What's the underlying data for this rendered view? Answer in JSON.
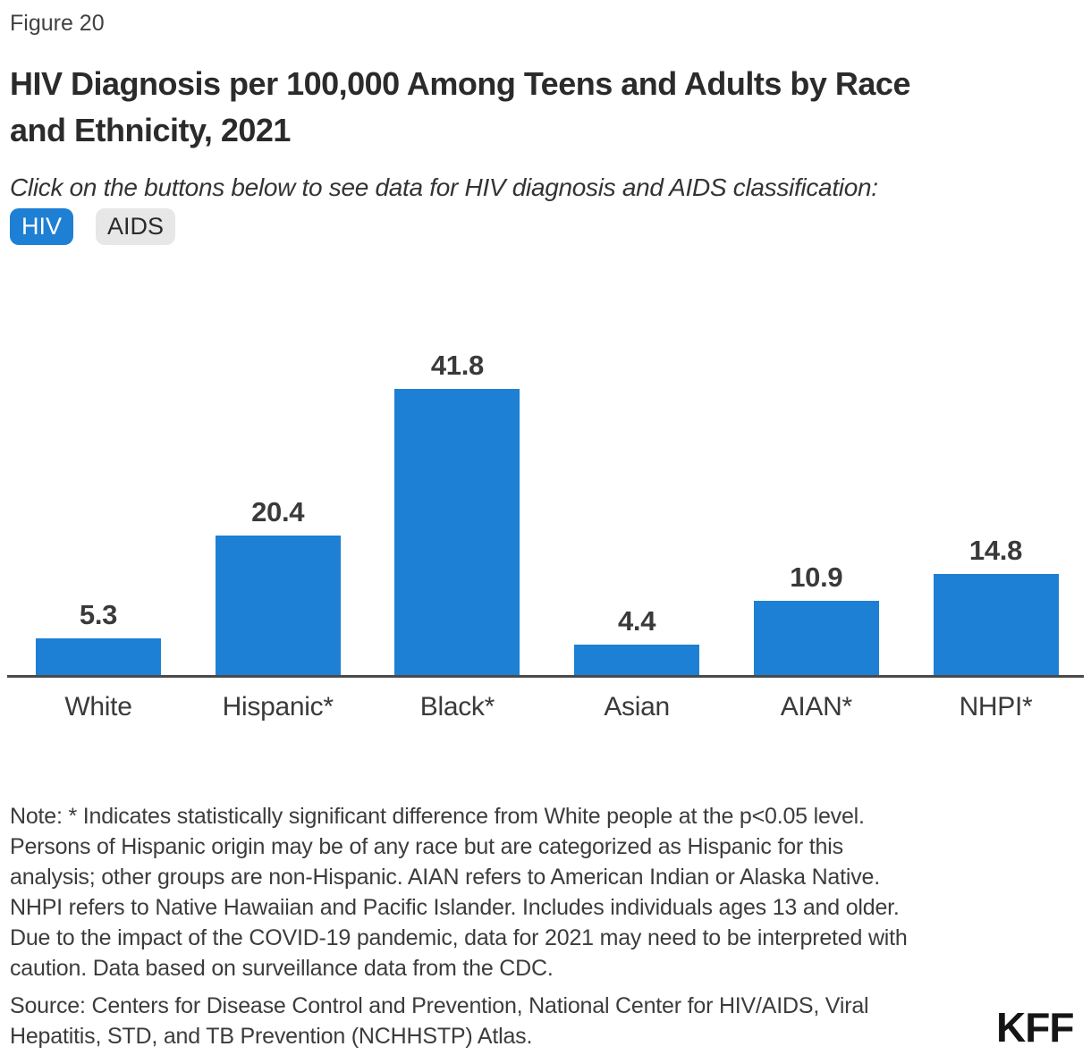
{
  "figure_label": "Figure 20",
  "title": "HIV Diagnosis per 100,000 Among Teens and Adults by Race\nand Ethnicity, 2021",
  "subtitle": "Click on the buttons below to see data for HIV diagnosis and AIDS classification:",
  "buttons": {
    "hiv_label": "HIV",
    "aids_label": "AIDS",
    "active": "HIV"
  },
  "colors": {
    "bar": "#1d80d4",
    "active_button_bg": "#1d80d4",
    "active_button_text": "#ffffff",
    "inactive_button_bg": "#e7e7e7",
    "inactive_button_text": "#2b2b2b",
    "axis_line": "#4a4a4a",
    "text": "#3e3e3e"
  },
  "chart_data": {
    "type": "bar",
    "categories": [
      "White",
      "Hispanic*",
      "Black*",
      "Asian",
      "AIAN*",
      "NHPI*"
    ],
    "values": [
      5.3,
      20.4,
      41.8,
      4.4,
      10.9,
      14.8
    ],
    "value_labels": [
      "5.3",
      "20.4",
      "41.8",
      "4.4",
      "10.9",
      "14.8"
    ],
    "title": "HIV Diagnosis per 100,000 Among Teens and Adults by Race and Ethnicity, 2021",
    "xlabel": "",
    "ylabel": "",
    "ylim": [
      0,
      49
    ],
    "grid": false,
    "legend": false,
    "data_labels": true,
    "bar_color": "#1d80d4"
  },
  "note": "Note: * Indicates statistically significant difference from White people at the p<0.05 level.\nPersons of Hispanic origin may be of any race but are categorized as Hispanic for this\nanalysis; other groups are non-Hispanic. AIAN refers to American Indian or Alaska Native.\nNHPI refers to Native Hawaiian and Pacific Islander. Includes individuals ages 13 and older.\nDue to the impact of the COVID-19 pandemic, data for 2021 may need to be interpreted with\ncaution. Data based on surveillance data from the CDC.",
  "source": "Source: Centers for Disease Control and Prevention, National Center for HIV/AIDS, Viral\nHepatitis, STD, and TB Prevention (NCHHSTP) Atlas.",
  "logo": "KFF"
}
